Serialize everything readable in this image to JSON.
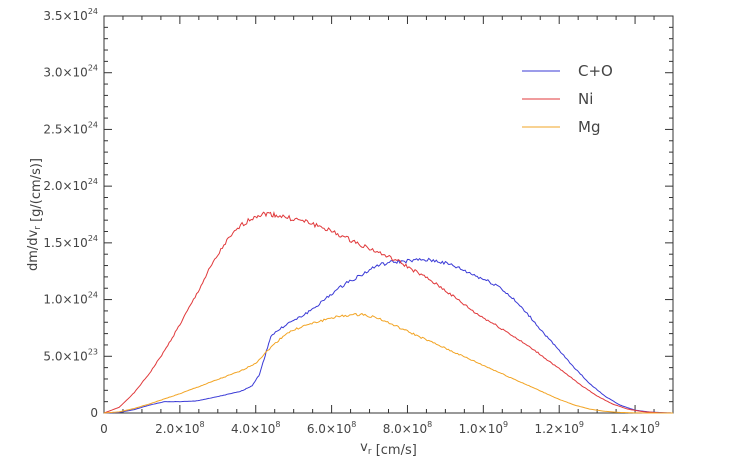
{
  "chart_data": {
    "type": "line",
    "title": "",
    "xlabel": "v_r [cm/s]",
    "ylabel": "dm/dv_r [g/(cm/s)]",
    "xlim": [
      0,
      1500000000.0
    ],
    "ylim": [
      0,
      3.5e+24
    ],
    "x_ticks": [
      {
        "value": 0,
        "label": "0"
      },
      {
        "value": 200000000.0,
        "label": "2.0×10^8"
      },
      {
        "value": 400000000.0,
        "label": "4.0×10^8"
      },
      {
        "value": 600000000.0,
        "label": "6.0×10^8"
      },
      {
        "value": 800000000.0,
        "label": "8.0×10^8"
      },
      {
        "value": 1000000000.0,
        "label": "1.0×10^9"
      },
      {
        "value": 1200000000.0,
        "label": "1.2×10^9"
      },
      {
        "value": 1400000000.0,
        "label": "1.4×10^9"
      }
    ],
    "y_ticks": [
      {
        "value": 0,
        "label": "0"
      },
      {
        "value": 5e+23,
        "label": "5.0×10^23"
      },
      {
        "value": 1e+24,
        "label": "1.0×10^24"
      },
      {
        "value": 1.5e+24,
        "label": "1.5×10^24"
      },
      {
        "value": 2e+24,
        "label": "2.0×10^24"
      },
      {
        "value": 2.5e+24,
        "label": "2.5×10^24"
      },
      {
        "value": 3e+24,
        "label": "3.0×10^24"
      },
      {
        "value": 3.5e+24,
        "label": "3.5×10^24"
      }
    ],
    "grid": false,
    "legend_position": "top-right",
    "series": [
      {
        "name": "C+O",
        "color": "#3a3ad6",
        "x": [
          0,
          40000000.0,
          80000000.0,
          120000000.0,
          160000000.0,
          200000000.0,
          240000000.0,
          280000000.0,
          320000000.0,
          360000000.0,
          390000000.0,
          410000000.0,
          440000000.0,
          480000000.0,
          520000000.0,
          560000000.0,
          600000000.0,
          640000000.0,
          680000000.0,
          720000000.0,
          760000000.0,
          800000000.0,
          840000000.0,
          880000000.0,
          920000000.0,
          960000000.0,
          1000000000.0,
          1040000000.0,
          1080000000.0,
          1120000000.0,
          1160000000.0,
          1200000000.0,
          1240000000.0,
          1280000000.0,
          1320000000.0,
          1360000000.0,
          1400000000.0,
          1440000000.0,
          1480000000.0,
          1500000000.0
        ],
        "y": [
          0,
          5e+21,
          3e+22,
          7e+22,
          1e+23,
          1e+23,
          1.05e+23,
          1.3e+23,
          1.6e+23,
          1.9e+23,
          2.4e+23,
          3.4e+23,
          6.8e+23,
          7.8e+23,
          8.5e+23,
          9.4e+23,
          1.05e+24,
          1.15e+24,
          1.22e+24,
          1.3e+24,
          1.33e+24,
          1.34e+24,
          1.35e+24,
          1.34e+24,
          1.3e+24,
          1.24e+24,
          1.18e+24,
          1.12e+24,
          1e+24,
          8.6e+23,
          7e+23,
          5.5e+23,
          4e+23,
          2.6e+23,
          1.5e+23,
          7e+22,
          2.5e+22,
          8e+21,
          2e+21,
          0
        ]
      },
      {
        "name": "Ni",
        "color": "#e0393b",
        "x": [
          0,
          40000000.0,
          80000000.0,
          120000000.0,
          160000000.0,
          200000000.0,
          240000000.0,
          280000000.0,
          320000000.0,
          360000000.0,
          400000000.0,
          430000000.0,
          460000000.0,
          500000000.0,
          540000000.0,
          580000000.0,
          620000000.0,
          660000000.0,
          700000000.0,
          740000000.0,
          780000000.0,
          820000000.0,
          860000000.0,
          900000000.0,
          940000000.0,
          980000000.0,
          1020000000.0,
          1060000000.0,
          1100000000.0,
          1140000000.0,
          1180000000.0,
          1220000000.0,
          1260000000.0,
          1300000000.0,
          1340000000.0,
          1380000000.0,
          1420000000.0,
          1460000000.0,
          1500000000.0
        ],
        "y": [
          0,
          5e+22,
          1.8e+23,
          3.5e+23,
          5.5e+23,
          7.8e+23,
          1.02e+24,
          1.28e+24,
          1.5e+24,
          1.65e+24,
          1.74e+24,
          1.76e+24,
          1.74e+24,
          1.71e+24,
          1.68e+24,
          1.63e+24,
          1.57e+24,
          1.51e+24,
          1.45e+24,
          1.39e+24,
          1.33e+24,
          1.25e+24,
          1.17e+24,
          1.08e+24,
          9.8e+23,
          8.8e+23,
          8e+23,
          7.2e+23,
          6.3e+23,
          5.4e+23,
          4.4e+23,
          3.4e+23,
          2.4e+23,
          1.5e+23,
          8e+22,
          3.5e+22,
          1.2e+22,
          3e+21,
          0
        ]
      },
      {
        "name": "Mg",
        "color": "#f2a424",
        "x": [
          0,
          40000000.0,
          80000000.0,
          120000000.0,
          160000000.0,
          200000000.0,
          240000000.0,
          280000000.0,
          320000000.0,
          360000000.0,
          400000000.0,
          440000000.0,
          480000000.0,
          520000000.0,
          560000000.0,
          600000000.0,
          640000000.0,
          680000000.0,
          720000000.0,
          760000000.0,
          800000000.0,
          840000000.0,
          880000000.0,
          920000000.0,
          960000000.0,
          1000000000.0,
          1040000000.0,
          1080000000.0,
          1120000000.0,
          1160000000.0,
          1200000000.0,
          1240000000.0,
          1280000000.0,
          1320000000.0,
          1360000000.0,
          1400000000.0,
          1440000000.0,
          1480000000.0,
          1500000000.0
        ],
        "y": [
          0,
          1e+22,
          4e+22,
          8e+22,
          1.25e+23,
          1.7e+23,
          2.2e+23,
          2.7e+23,
          3.2e+23,
          3.7e+23,
          4.4e+23,
          5.8e+23,
          7e+23,
          7.6e+23,
          8e+23,
          8.4e+23,
          8.6e+23,
          8.7e+23,
          8.4e+23,
          7.8e+23,
          7.2e+23,
          6.6e+23,
          6e+23,
          5.4e+23,
          4.8e+23,
          4.2e+23,
          3.6e+23,
          3e+23,
          2.4e+23,
          1.8e+23,
          1.2e+23,
          7e+22,
          3.5e+22,
          1.5e+22,
          5e+21,
          1e+21,
          0,
          0,
          0
        ]
      }
    ]
  }
}
